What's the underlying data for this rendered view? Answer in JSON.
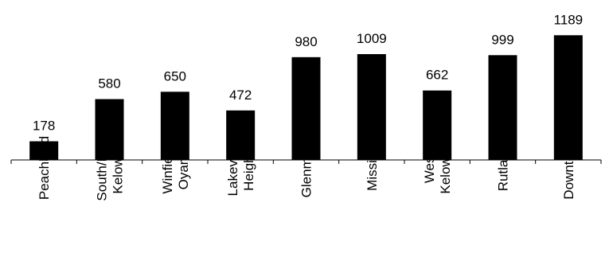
{
  "chart_data": {
    "type": "bar",
    "categories": [
      [
        "Peachland"
      ],
      [
        "South/East",
        "Kelowna"
      ],
      [
        "Winfield/",
        "Oyama"
      ],
      [
        "Lakeview",
        "Heights"
      ],
      [
        "Glenmore"
      ],
      [
        "Mission"
      ],
      [
        "West",
        "Kelowna"
      ],
      [
        "Rutland"
      ],
      [
        "Downtown"
      ]
    ],
    "values": [
      178,
      580,
      650,
      472,
      980,
      1009,
      662,
      999,
      1189
    ],
    "data_labels": [
      "178",
      "580",
      "650",
      "472",
      "980",
      "1009",
      "662",
      "999",
      "1189"
    ],
    "title": "",
    "xlabel": "",
    "ylabel": "",
    "ylim": [
      0,
      1300
    ],
    "grid": false,
    "legend": "none",
    "colors": {
      "bar": "#000000",
      "axis": "#000000",
      "text": "#000000"
    }
  }
}
